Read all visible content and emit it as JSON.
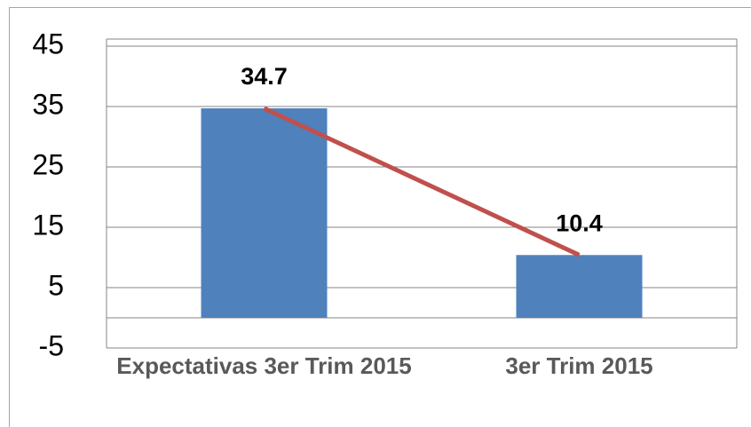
{
  "chart_data": {
    "type": "bar",
    "categories": [
      "Expectativas 3er Trim 2015",
      "3er Trim 2015"
    ],
    "series": [
      {
        "type": "bar",
        "color": "#4f81bd",
        "values": [
          34.7,
          10.4
        ]
      },
      {
        "type": "line",
        "color": "#c0504d",
        "values": [
          34.7,
          10.4
        ]
      }
    ],
    "ylim": [
      -5,
      45
    ],
    "yticks": [
      -5,
      5,
      15,
      25,
      35,
      45
    ],
    "grid": true
  }
}
